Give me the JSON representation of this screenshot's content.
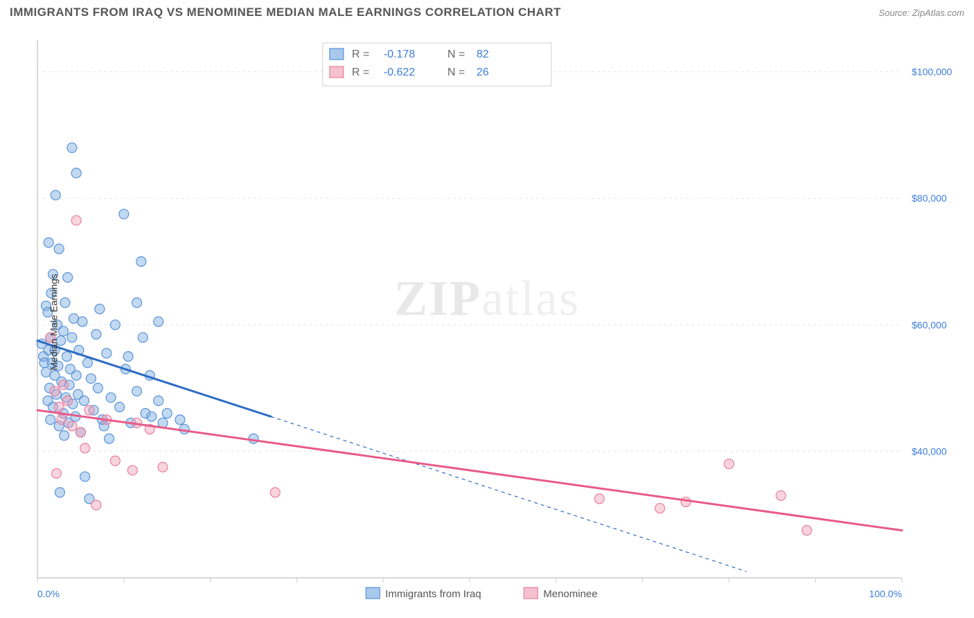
{
  "header": {
    "title": "IMMIGRANTS FROM IRAQ VS MENOMINEE MEDIAN MALE EARNINGS CORRELATION CHART",
    "source_label": "Source: ",
    "source_value": "ZipAtlas.com"
  },
  "watermark": {
    "prefix": "ZIP",
    "suffix": "atlas"
  },
  "chart": {
    "type": "scatter",
    "background_color": "#ffffff",
    "plot_border_color": "#cccccc",
    "grid_color": "#e5e5e5",
    "grid_dash": "4,4",
    "ylabel": "Median Male Earnings",
    "xlim": [
      0,
      100
    ],
    "ylim": [
      20000,
      105000
    ],
    "xtick_start_label": "0.0%",
    "xtick_end_label": "100.0%",
    "xtick_color": "#3b7dd8",
    "xtick_fontsize": 14,
    "yticks": [
      40000,
      60000,
      80000,
      100000
    ],
    "ytick_labels": [
      "$40,000",
      "$60,000",
      "$80,000",
      "$100,000"
    ],
    "ytick_color": "#3b7dd8",
    "ytick_fontsize": 14,
    "xtick_positions_pct": [
      0,
      10,
      20,
      30,
      40,
      50,
      60,
      70,
      80,
      90,
      100
    ],
    "legend_top": {
      "border_color": "#d0d0d0",
      "bg_color": "#ffffff",
      "rows": [
        {
          "swatch_fill": "#a8c8ec",
          "swatch_stroke": "#5a93d8",
          "r_label": "R =",
          "r_value": "-0.178",
          "n_label": "N =",
          "n_value": "82"
        },
        {
          "swatch_fill": "#f5c0cf",
          "swatch_stroke": "#e87fa0",
          "r_label": "R =",
          "r_value": "-0.622",
          "n_label": "N =",
          "n_value": "26"
        }
      ],
      "label_color": "#666666",
      "value_color": "#3b7dd8"
    },
    "legend_bottom": {
      "items": [
        {
          "swatch_fill": "#a8c8ec",
          "swatch_stroke": "#5a93d8",
          "label": "Immigrants from Iraq"
        },
        {
          "swatch_fill": "#f5c0cf",
          "swatch_stroke": "#e87fa0",
          "label": "Menominee"
        }
      ],
      "label_color": "#555555",
      "fontsize": 15
    },
    "series": [
      {
        "name": "Immigrants from Iraq",
        "fill": "rgba(120,170,225,0.45)",
        "stroke": "#5a93d8",
        "stroke_width": 1.2,
        "marker_radius": 7,
        "trend": {
          "solid": {
            "x1": 0,
            "y1": 57500,
            "x2": 27,
            "y2": 45500,
            "color": "#2d6bc4",
            "width": 3
          },
          "dashed": {
            "x1": 27,
            "y1": 45500,
            "x2": 82,
            "y2": 21000,
            "color": "#2d6bc4",
            "width": 1.2,
            "dash": "5,5"
          }
        },
        "points": [
          [
            0.5,
            57000
          ],
          [
            0.7,
            55000
          ],
          [
            0.8,
            54000
          ],
          [
            1.0,
            63000
          ],
          [
            1.0,
            52500
          ],
          [
            1.2,
            62000
          ],
          [
            1.2,
            48000
          ],
          [
            1.3,
            73000
          ],
          [
            1.3,
            56000
          ],
          [
            1.4,
            50000
          ],
          [
            1.5,
            58000
          ],
          [
            1.5,
            45000
          ],
          [
            1.6,
            65000
          ],
          [
            1.7,
            54000
          ],
          [
            1.8,
            68000
          ],
          [
            1.8,
            47000
          ],
          [
            2.0,
            56000
          ],
          [
            2.0,
            52000
          ],
          [
            2.1,
            80500
          ],
          [
            2.2,
            49000
          ],
          [
            2.3,
            60000
          ],
          [
            2.4,
            53500
          ],
          [
            2.5,
            72000
          ],
          [
            2.5,
            44000
          ],
          [
            2.6,
            33500
          ],
          [
            2.7,
            57500
          ],
          [
            2.8,
            51000
          ],
          [
            3.0,
            46000
          ],
          [
            3.0,
            59000
          ],
          [
            3.1,
            42500
          ],
          [
            3.2,
            63500
          ],
          [
            3.3,
            48500
          ],
          [
            3.4,
            55000
          ],
          [
            3.5,
            67500
          ],
          [
            3.6,
            44500
          ],
          [
            3.7,
            50500
          ],
          [
            3.8,
            53000
          ],
          [
            4.0,
            58000
          ],
          [
            4.0,
            88000
          ],
          [
            4.1,
            47500
          ],
          [
            4.2,
            61000
          ],
          [
            4.4,
            45500
          ],
          [
            4.5,
            84000
          ],
          [
            4.5,
            52000
          ],
          [
            4.7,
            49000
          ],
          [
            4.8,
            56000
          ],
          [
            5.0,
            43000
          ],
          [
            5.2,
            60500
          ],
          [
            5.4,
            48000
          ],
          [
            5.5,
            36000
          ],
          [
            5.8,
            54000
          ],
          [
            6.0,
            32500
          ],
          [
            6.2,
            51500
          ],
          [
            6.5,
            46500
          ],
          [
            6.8,
            58500
          ],
          [
            7.0,
            50000
          ],
          [
            7.2,
            62500
          ],
          [
            7.5,
            45000
          ],
          [
            7.7,
            44000
          ],
          [
            8.0,
            55500
          ],
          [
            8.3,
            42000
          ],
          [
            8.5,
            48500
          ],
          [
            9.0,
            60000
          ],
          [
            9.5,
            47000
          ],
          [
            10.0,
            77500
          ],
          [
            10.2,
            53000
          ],
          [
            10.5,
            55000
          ],
          [
            10.8,
            44500
          ],
          [
            11.5,
            63500
          ],
          [
            11.5,
            49500
          ],
          [
            12.0,
            70000
          ],
          [
            12.2,
            58000
          ],
          [
            12.5,
            46000
          ],
          [
            13.0,
            52000
          ],
          [
            13.2,
            45500
          ],
          [
            14.0,
            48000
          ],
          [
            14.0,
            60500
          ],
          [
            14.5,
            44500
          ],
          [
            15.0,
            46000
          ],
          [
            16.5,
            45000
          ],
          [
            17.0,
            43500
          ],
          [
            25.0,
            42000
          ]
        ]
      },
      {
        "name": "Menominee",
        "fill": "rgba(240,160,185,0.45)",
        "stroke": "#e87fa0",
        "stroke_width": 1.2,
        "marker_radius": 7,
        "trend": {
          "solid": {
            "x1": 0,
            "y1": 46500,
            "x2": 100,
            "y2": 27500,
            "color": "#e85a88",
            "width": 3
          }
        },
        "points": [
          [
            1.5,
            58000
          ],
          [
            2.0,
            49500
          ],
          [
            2.2,
            36500
          ],
          [
            2.5,
            47000
          ],
          [
            2.8,
            45000
          ],
          [
            3.0,
            50500
          ],
          [
            3.5,
            48000
          ],
          [
            4.0,
            44000
          ],
          [
            4.5,
            76500
          ],
          [
            5.0,
            43000
          ],
          [
            5.5,
            40500
          ],
          [
            6.0,
            46500
          ],
          [
            6.8,
            31500
          ],
          [
            8.0,
            45000
          ],
          [
            9.0,
            38500
          ],
          [
            11.0,
            37000
          ],
          [
            11.5,
            44500
          ],
          [
            13.0,
            43500
          ],
          [
            14.5,
            37500
          ],
          [
            27.5,
            33500
          ],
          [
            65.0,
            32500
          ],
          [
            72.0,
            31000
          ],
          [
            75.0,
            32000
          ],
          [
            80.0,
            38000
          ],
          [
            86.0,
            33000
          ],
          [
            89.0,
            27500
          ]
        ]
      }
    ]
  }
}
